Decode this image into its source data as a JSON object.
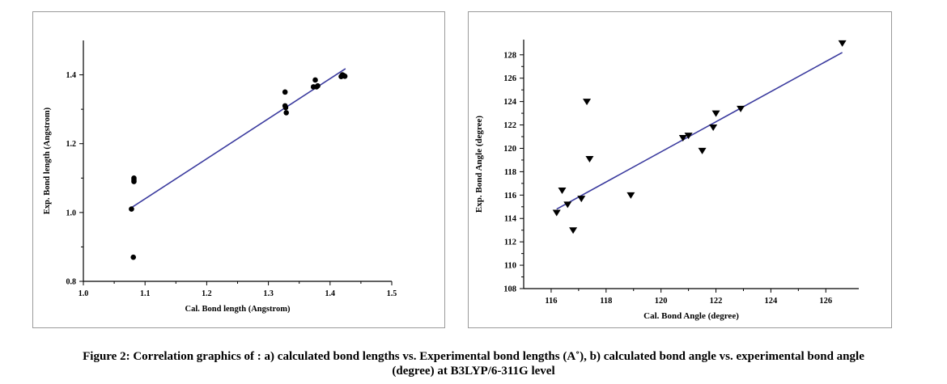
{
  "caption": {
    "line1": "Figure 2: Correlation graphics of : a) calculated bond lengths vs. Experimental bond lengths (A˚), b) calculated bond angle vs. experimental bond angle",
    "line2": "(degree) at B3LYP/6-311G level"
  },
  "colors": {
    "fit_line": "#3a3a9e",
    "marker": "#000000",
    "axis": "#000000"
  },
  "chart_data": [
    {
      "type": "scatter",
      "marker": "circle",
      "xlabel": "Cal. Bond length (Angstrom)",
      "ylabel": "Exp. Bond length (Angstrom)",
      "xlim": [
        1.0,
        1.5
      ],
      "ylim": [
        0.8,
        1.5
      ],
      "xticks": [
        1.0,
        1.1,
        1.2,
        1.3,
        1.4,
        1.5
      ],
      "xtick_labels": [
        "1.0",
        "1.1",
        "1.2",
        "1.3",
        "1.4",
        "1.5"
      ],
      "yticks": [
        0.8,
        1.0,
        1.2,
        1.4
      ],
      "ytick_labels": [
        "0.8",
        "1.0",
        "1.2",
        "1.4"
      ],
      "grid": false,
      "points": [
        [
          1.078,
          1.01
        ],
        [
          1.081,
          0.87
        ],
        [
          1.082,
          1.09
        ],
        [
          1.082,
          1.095
        ],
        [
          1.082,
          1.1
        ],
        [
          1.327,
          1.35
        ],
        [
          1.327,
          1.31
        ],
        [
          1.328,
          1.305
        ],
        [
          1.329,
          1.29
        ],
        [
          1.373,
          1.365
        ],
        [
          1.376,
          1.385
        ],
        [
          1.378,
          1.365
        ],
        [
          1.38,
          1.368
        ],
        [
          1.418,
          1.395
        ],
        [
          1.42,
          1.4
        ],
        [
          1.422,
          1.398
        ],
        [
          1.424,
          1.396
        ]
      ],
      "fit_line": [
        [
          1.077,
          1.013
        ],
        [
          1.425,
          1.418
        ]
      ]
    },
    {
      "type": "scatter",
      "marker": "triangle-down",
      "xlabel": "Cal. Bond Angle (degree)",
      "ylabel": "Exp. Bond Angle (degree)",
      "xlim": [
        115,
        127.2
      ],
      "ylim": [
        108,
        129.3
      ],
      "xticks": [
        116,
        118,
        120,
        122,
        124,
        126
      ],
      "xtick_labels": [
        "116",
        "118",
        "120",
        "122",
        "124",
        "126"
      ],
      "yticks": [
        108,
        110,
        112,
        114,
        116,
        118,
        120,
        122,
        124,
        126,
        128
      ],
      "ytick_labels": [
        "108",
        "110",
        "112",
        "114",
        "116",
        "118",
        "120",
        "122",
        "124",
        "126",
        "128"
      ],
      "grid": false,
      "points": [
        [
          116.2,
          114.5
        ],
        [
          116.4,
          116.4
        ],
        [
          116.6,
          115.2
        ],
        [
          116.8,
          113.0
        ],
        [
          117.1,
          115.7
        ],
        [
          117.3,
          124.0
        ],
        [
          117.4,
          119.1
        ],
        [
          118.9,
          116.0
        ],
        [
          120.8,
          120.9
        ],
        [
          121.0,
          121.1
        ],
        [
          121.5,
          119.8
        ],
        [
          121.9,
          121.8
        ],
        [
          122.0,
          123.0
        ],
        [
          122.9,
          123.4
        ],
        [
          126.6,
          129.0
        ]
      ],
      "fit_line": [
        [
          116.2,
          114.8
        ],
        [
          126.6,
          128.2
        ]
      ]
    }
  ]
}
